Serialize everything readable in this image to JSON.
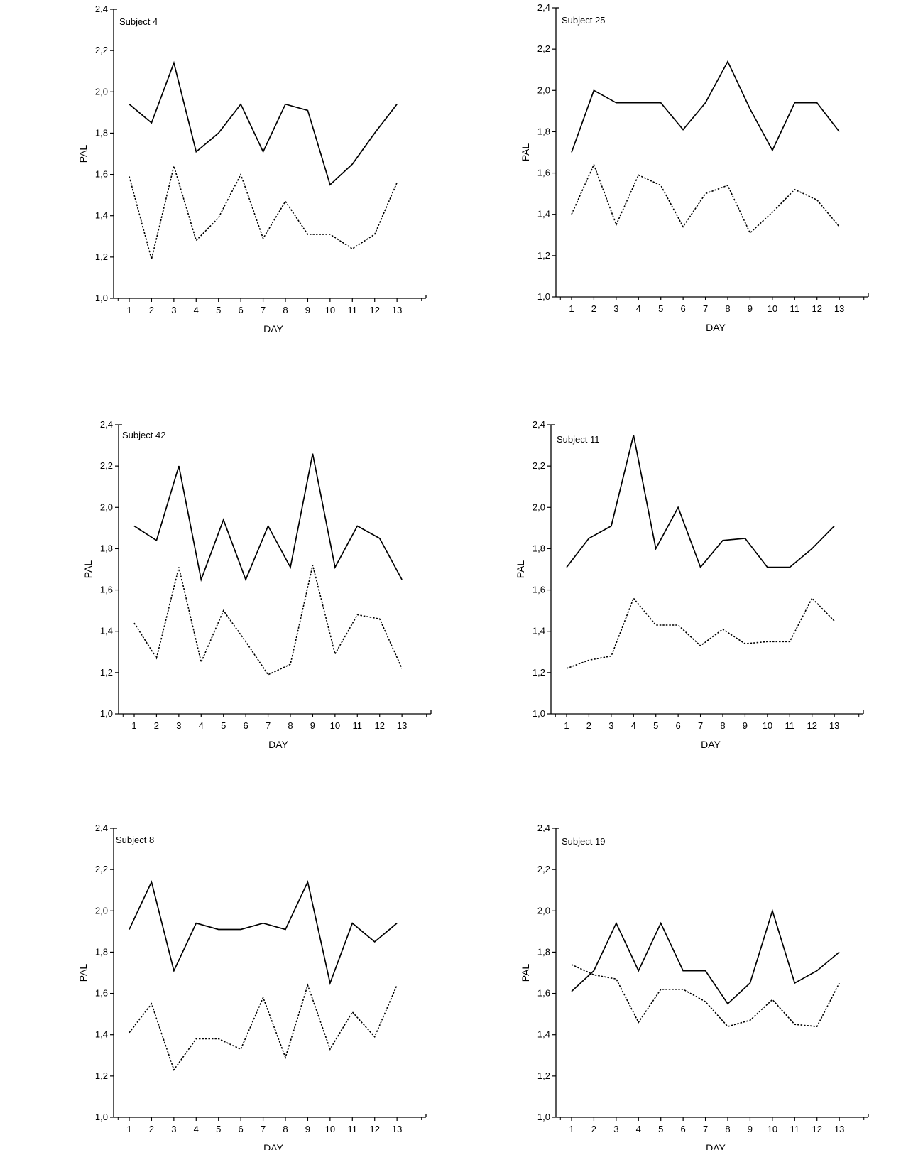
{
  "chart_data": [
    {
      "type": "line",
      "title": "Subject 4",
      "xlabel": "DAY",
      "ylabel": "PAL",
      "ylim": [
        1.0,
        2.4
      ],
      "xlim": [
        0.3,
        14.3
      ],
      "x": [
        1,
        2,
        3,
        4,
        5,
        6,
        7,
        8,
        9,
        10,
        11,
        12,
        13
      ],
      "y_ticks": [
        "1,0",
        "1,2",
        "1,4",
        "1,6",
        "1,8",
        "2,0",
        "2,2",
        "2,4"
      ],
      "series": [
        {
          "style": "solid",
          "values": [
            1.94,
            1.85,
            2.14,
            1.71,
            1.8,
            1.94,
            1.71,
            1.94,
            1.91,
            1.55,
            1.65,
            1.8,
            1.94
          ]
        },
        {
          "style": "dotted",
          "values": [
            1.59,
            1.19,
            1.64,
            1.28,
            1.39,
            1.6,
            1.29,
            1.47,
            1.31,
            1.31,
            1.24,
            1.31,
            1.56
          ]
        }
      ]
    },
    {
      "type": "line",
      "title": "Subject 25",
      "xlabel": "DAY",
      "ylabel": "PAL",
      "ylim": [
        1.0,
        2.4
      ],
      "xlim": [
        0.3,
        14.3
      ],
      "x": [
        1,
        2,
        3,
        4,
        5,
        6,
        7,
        8,
        9,
        10,
        11,
        12,
        13
      ],
      "y_ticks": [
        "1,0",
        "1,2",
        "1,4",
        "1,6",
        "1,8",
        "2,0",
        "2,2",
        "2,4"
      ],
      "series": [
        {
          "style": "solid",
          "values": [
            1.7,
            2.0,
            1.94,
            1.94,
            1.94,
            1.81,
            1.94,
            2.14,
            1.91,
            1.71,
            1.94,
            1.94,
            1.8
          ]
        },
        {
          "style": "dotted",
          "values": [
            1.4,
            1.64,
            1.35,
            1.59,
            1.54,
            1.34,
            1.5,
            1.54,
            1.31,
            1.41,
            1.52,
            1.47,
            1.34
          ]
        }
      ]
    },
    {
      "type": "line",
      "title": "Subject 42",
      "xlabel": "DAY",
      "ylabel": "PAL",
      "ylim": [
        1.0,
        2.4
      ],
      "xlim": [
        0.3,
        14.3
      ],
      "x": [
        1,
        2,
        3,
        4,
        5,
        6,
        7,
        8,
        9,
        10,
        11,
        12,
        13
      ],
      "y_ticks": [
        "1,0",
        "1,2",
        "1,4",
        "1,6",
        "1,8",
        "2,0",
        "2,2",
        "2,4"
      ],
      "series": [
        {
          "style": "solid",
          "values": [
            1.91,
            1.84,
            2.2,
            1.65,
            1.94,
            1.65,
            1.91,
            1.71,
            2.26,
            1.71,
            1.91,
            1.85,
            1.65
          ]
        },
        {
          "style": "dotted",
          "values": [
            1.44,
            1.27,
            1.71,
            1.25,
            1.5,
            1.35,
            1.19,
            1.24,
            1.72,
            1.29,
            1.48,
            1.46,
            1.22
          ]
        }
      ]
    },
    {
      "type": "line",
      "title": "Subject 11",
      "xlabel": "DAY",
      "ylabel": "PAL",
      "ylim": [
        1.0,
        2.4
      ],
      "xlim": [
        0.3,
        14.3
      ],
      "x": [
        1,
        2,
        3,
        4,
        5,
        6,
        7,
        8,
        9,
        10,
        11,
        12,
        13
      ],
      "y_ticks": [
        "1,0",
        "1,2",
        "1,4",
        "1,6",
        "1,8",
        "2,0",
        "2,2",
        "2,4"
      ],
      "series": [
        {
          "style": "solid",
          "values": [
            1.71,
            1.85,
            1.91,
            2.35,
            1.8,
            2.0,
            1.71,
            1.84,
            1.85,
            1.71,
            1.71,
            1.8,
            1.91
          ]
        },
        {
          "style": "dotted",
          "values": [
            1.22,
            1.26,
            1.28,
            1.56,
            1.43,
            1.43,
            1.33,
            1.41,
            1.34,
            1.35,
            1.35,
            1.56,
            1.45
          ]
        }
      ]
    },
    {
      "type": "line",
      "title": "Subject 8",
      "xlabel": "DAY",
      "ylabel": "PAL",
      "ylim": [
        1.0,
        2.4
      ],
      "xlim": [
        0.3,
        14.3
      ],
      "x": [
        1,
        2,
        3,
        4,
        5,
        6,
        7,
        8,
        9,
        10,
        11,
        12,
        13
      ],
      "y_ticks": [
        "1,0",
        "1,2",
        "1,4",
        "1,6",
        "1,8",
        "2,0",
        "2,2",
        "2,4"
      ],
      "series": [
        {
          "style": "solid",
          "values": [
            1.91,
            2.14,
            1.71,
            1.94,
            1.91,
            1.91,
            1.94,
            1.91,
            2.14,
            1.65,
            1.94,
            1.85,
            1.94
          ]
        },
        {
          "style": "dotted",
          "values": [
            1.41,
            1.55,
            1.23,
            1.38,
            1.38,
            1.33,
            1.58,
            1.29,
            1.64,
            1.33,
            1.51,
            1.39,
            1.64
          ]
        }
      ]
    },
    {
      "type": "line",
      "title": "Subject 19",
      "xlabel": "DAY",
      "ylabel": "PAL",
      "ylim": [
        1.0,
        2.4
      ],
      "xlim": [
        0.3,
        14.3
      ],
      "x": [
        1,
        2,
        3,
        4,
        5,
        6,
        7,
        8,
        9,
        10,
        11,
        12,
        13
      ],
      "y_ticks": [
        "1,0",
        "1,2",
        "1,4",
        "1,6",
        "1,8",
        "2,0",
        "2,2",
        "2,4"
      ],
      "series": [
        {
          "style": "solid",
          "values": [
            1.61,
            1.71,
            1.94,
            1.71,
            1.94,
            1.71,
            1.71,
            1.55,
            1.65,
            2.0,
            1.65,
            1.71,
            1.8
          ]
        },
        {
          "style": "dotted",
          "values": [
            1.74,
            1.69,
            1.67,
            1.46,
            1.62,
            1.62,
            1.56,
            1.44,
            1.47,
            1.57,
            1.45,
            1.44,
            1.65
          ]
        }
      ]
    }
  ]
}
